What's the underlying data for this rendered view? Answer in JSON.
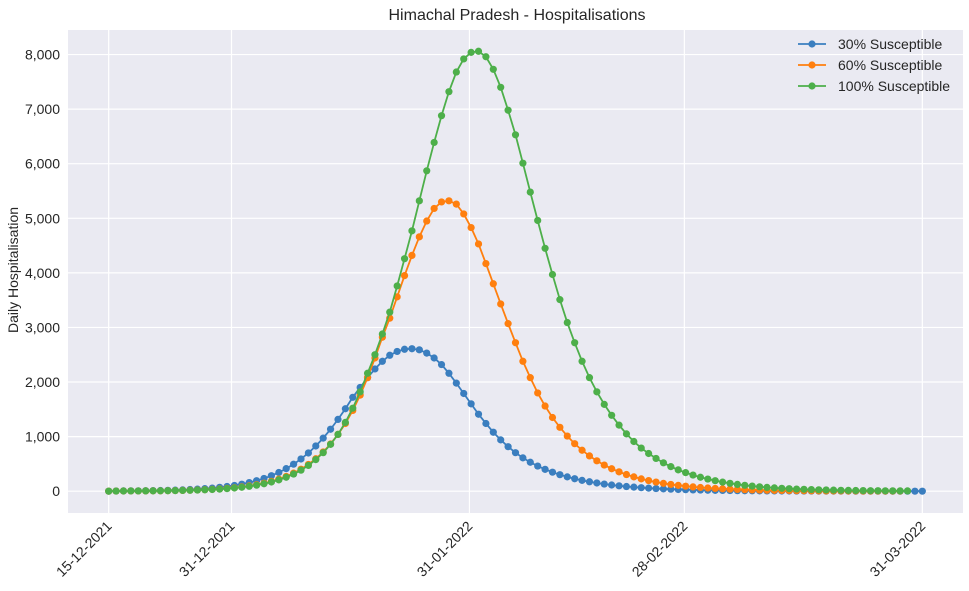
{
  "chart_data": {
    "type": "line",
    "title": "Himachal Pradesh - Hospitalisations",
    "xlabel": "",
    "ylabel": "Daily Hospitalisation",
    "x_start": "15-12-2021",
    "x_end": "31-03-2022",
    "ylim": [
      -400,
      8450
    ],
    "x_ticks": [
      "15-12-2021",
      "31-12-2021",
      "31-01-2022",
      "28-02-2022",
      "31-03-2022"
    ],
    "y_ticks": [
      0,
      1000,
      2000,
      3000,
      4000,
      5000,
      6000,
      7000,
      8000
    ],
    "y_tick_labels": [
      "0",
      "1,000",
      "2,000",
      "3,000",
      "4,000",
      "5,000",
      "6,000",
      "7,000",
      "8,000"
    ],
    "grid": true,
    "legend_position": "top-right",
    "background": "#eaeaf2",
    "series": [
      {
        "name": "30% Susceptible",
        "color": "#3a7ebf",
        "values": [
          0,
          3,
          5,
          6,
          7,
          9,
          10,
          12,
          15,
          19,
          24,
          30,
          37,
          46,
          56,
          70,
          85,
          105,
          128,
          158,
          192,
          233,
          283,
          342,
          413,
          494,
          590,
          700,
          828,
          972,
          1135,
          1315,
          1510,
          1720,
          1900,
          2080,
          2240,
          2380,
          2490,
          2560,
          2600,
          2610,
          2590,
          2530,
          2440,
          2320,
          2160,
          1980,
          1790,
          1600,
          1410,
          1240,
          1080,
          940,
          815,
          705,
          610,
          530,
          460,
          400,
          348,
          302,
          262,
          228,
          198,
          172,
          150,
          130,
          113,
          98,
          85,
          74,
          64,
          56,
          48,
          42,
          36,
          31,
          27,
          23,
          20,
          17,
          15,
          13,
          11,
          9,
          8,
          7,
          6,
          5,
          4,
          3,
          3,
          2,
          2,
          2,
          1,
          1,
          1,
          1,
          1,
          0,
          0,
          0,
          0,
          0,
          0,
          0,
          0,
          0,
          0
        ]
      },
      {
        "name": "60% Susceptible",
        "color": "#ff7f0e",
        "values": [
          0,
          2,
          3,
          4,
          4,
          5,
          6,
          7,
          9,
          11,
          14,
          18,
          22,
          27,
          34,
          42,
          52,
          64,
          79,
          97,
          119,
          146,
          180,
          220,
          270,
          330,
          402,
          490,
          594,
          718,
          865,
          1040,
          1240,
          1480,
          1760,
          2080,
          2440,
          2820,
          3170,
          3560,
          3950,
          4320,
          4660,
          4950,
          5180,
          5300,
          5320,
          5260,
          5080,
          4830,
          4530,
          4170,
          3800,
          3430,
          3070,
          2720,
          2380,
          2080,
          1800,
          1560,
          1350,
          1170,
          1010,
          870,
          750,
          646,
          556,
          478,
          411,
          354,
          305,
          262,
          225,
          194,
          167,
          143,
          123,
          106,
          91,
          78,
          67,
          58,
          50,
          43,
          37,
          32,
          27,
          23,
          20,
          17,
          15,
          13,
          11,
          9,
          8,
          7,
          6,
          5,
          4,
          4,
          3,
          3,
          2,
          2,
          2,
          1,
          1,
          1
        ]
      },
      {
        "name": "100% Susceptible",
        "color": "#4daf4a",
        "values": [
          0,
          2,
          3,
          4,
          4,
          5,
          6,
          7,
          8,
          10,
          13,
          16,
          20,
          25,
          31,
          38,
          47,
          58,
          72,
          89,
          110,
          136,
          168,
          207,
          255,
          314,
          385,
          472,
          578,
          705,
          858,
          1040,
          1260,
          1520,
          1820,
          2160,
          2500,
          2880,
          3280,
          3760,
          4260,
          4770,
          5320,
          5870,
          6390,
          6880,
          7320,
          7680,
          7920,
          8040,
          8060,
          7960,
          7730,
          7400,
          6980,
          6530,
          6010,
          5480,
          4960,
          4450,
          3970,
          3510,
          3090,
          2720,
          2380,
          2080,
          1820,
          1590,
          1390,
          1210,
          1050,
          910,
          790,
          690,
          600,
          520,
          450,
          390,
          340,
          295,
          255,
          222,
          192,
          166,
          144,
          124,
          107,
          93,
          80,
          69,
          60,
          52,
          45,
          39,
          34,
          29,
          25,
          22,
          19,
          16,
          14,
          12,
          11,
          9,
          8,
          7,
          6,
          5,
          5
        ]
      }
    ]
  }
}
